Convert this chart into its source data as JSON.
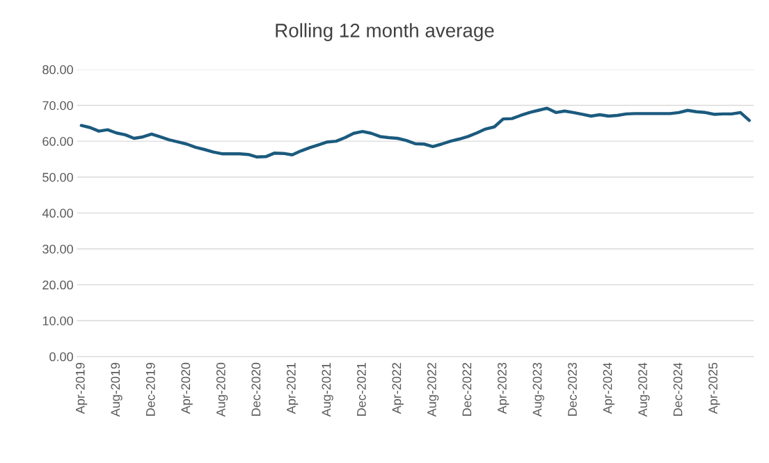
{
  "chart_data": {
    "type": "line",
    "title": "Rolling 12 month average",
    "categories": [
      "Apr-2019",
      null,
      null,
      null,
      "Aug-2019",
      null,
      null,
      null,
      "Dec-2019",
      null,
      null,
      null,
      "Apr-2020",
      null,
      null,
      null,
      "Aug-2020",
      null,
      null,
      null,
      "Dec-2020",
      null,
      null,
      null,
      "Apr-2021",
      null,
      null,
      null,
      "Aug-2021",
      null,
      null,
      null,
      "Dec-2021",
      null,
      null,
      null,
      "Apr-2022",
      null,
      null,
      null,
      "Aug-2022",
      null,
      null,
      null,
      "Dec-2022",
      null,
      null,
      null,
      "Apr-2023",
      null,
      null,
      null,
      "Aug-2023",
      null,
      null,
      null,
      "Dec-2023",
      null,
      null,
      null,
      "Apr-2024",
      null,
      null,
      null,
      "Aug-2024",
      null,
      null,
      null,
      "Dec-2024",
      null,
      null,
      null,
      "Apr-2025",
      null,
      null,
      null,
      null
    ],
    "series": [
      {
        "color": "#1b5a7e",
        "values": [
          64.4,
          63.8,
          62.8,
          63.2,
          62.3,
          61.8,
          60.8,
          61.2,
          62.0,
          61.2,
          60.4,
          59.8,
          59.2,
          58.3,
          57.7,
          57.0,
          56.5,
          56.5,
          56.5,
          56.3,
          55.6,
          55.7,
          56.7,
          56.6,
          56.2,
          57.3,
          58.2,
          59.0,
          59.8,
          60.0,
          61.0,
          62.2,
          62.7,
          62.2,
          61.3,
          61.0,
          60.8,
          60.2,
          59.3,
          59.2,
          58.5,
          59.2,
          60.0,
          60.6,
          61.3,
          62.3,
          63.4,
          64.0,
          66.2,
          66.3,
          67.2,
          68.0,
          68.6,
          69.2,
          68.0,
          68.4,
          68.0,
          67.5,
          67.0,
          67.4,
          67.0,
          67.2,
          67.6,
          67.7,
          67.7,
          67.7,
          67.7,
          67.7,
          68.0,
          68.6,
          68.2,
          68.0,
          67.5,
          67.6,
          67.6,
          68.0,
          65.8
        ]
      }
    ],
    "ylim": [
      0,
      80
    ],
    "yticks": [
      {
        "value": 0,
        "label": "0.00"
      },
      {
        "value": 10,
        "label": "10.00"
      },
      {
        "value": 20,
        "label": "20.00"
      },
      {
        "value": 30,
        "label": "30.00"
      },
      {
        "value": 40,
        "label": "40.00"
      },
      {
        "value": 50,
        "label": "50.00"
      },
      {
        "value": 60,
        "label": "60.00"
      },
      {
        "value": 70,
        "label": "70.00"
      },
      {
        "value": 80,
        "label": "80.00"
      }
    ],
    "grid": "y",
    "legend": false,
    "marker": "none",
    "line_style": "solid"
  }
}
